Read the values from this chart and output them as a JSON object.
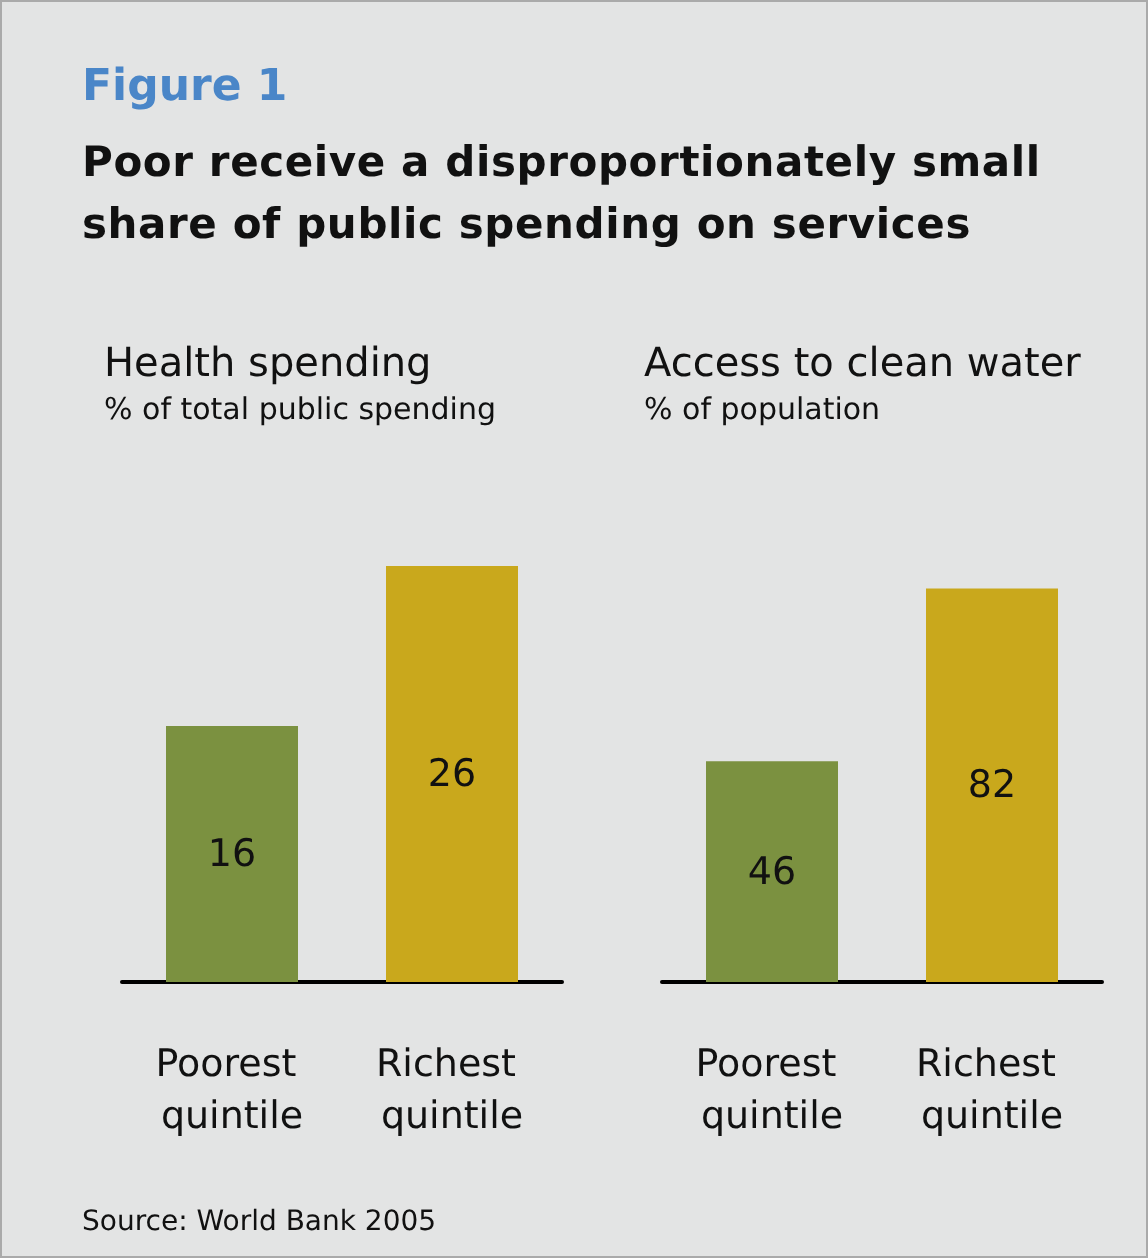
{
  "chart_data": [
    {
      "type": "other",
      "annotations": [
        "Figure 1"
      ],
      "title": "Poor receive a disproportionately small share of public spending on services"
    },
    {
      "type": "bar",
      "title": "Health spending",
      "subtitle": "% of total public spending",
      "categories": [
        "Poorest quintile",
        "Richest quintile"
      ],
      "values": [
        16,
        26
      ],
      "colors": [
        "#7b9140",
        "#c9a81c"
      ],
      "data_labels": true,
      "tick_labels": "x",
      "annotations": [
        "Source: World Bank 2005"
      ]
    },
    {
      "type": "bar",
      "title": "Access to clean water",
      "subtitle": "% of population",
      "categories": [
        "Poorest quintile",
        "Richest quintile"
      ],
      "values": [
        46,
        82
      ],
      "colors": [
        "#7b9140",
        "#c9a81c"
      ],
      "data_labels": true,
      "tick_labels": "x"
    }
  ]
}
